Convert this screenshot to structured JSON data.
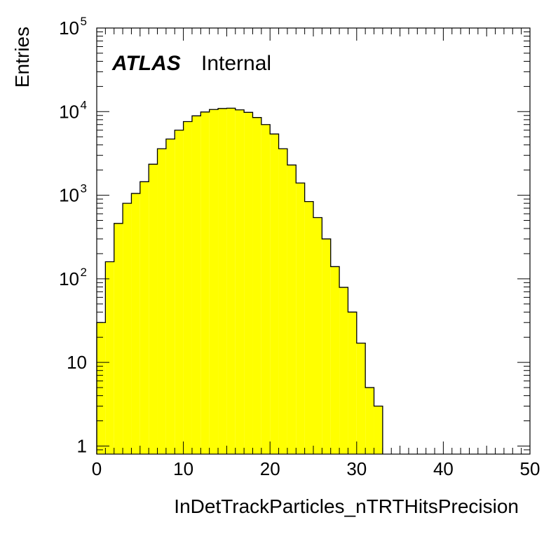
{
  "chart_data": {
    "type": "bar",
    "style": "histogram",
    "title": "",
    "xlabel": "InDetTrackParticles_nTRTHitsPrecision",
    "ylabel": "Entries",
    "xlim": [
      0,
      50
    ],
    "ylim": [
      0.8,
      100000
    ],
    "yscale": "log",
    "x_ticks": [
      0,
      10,
      20,
      30,
      40,
      50
    ],
    "y_ticks": [
      {
        "value": 1,
        "base": "1",
        "exp": ""
      },
      {
        "value": 10,
        "base": "10",
        "exp": ""
      },
      {
        "value": 100,
        "base": "10",
        "exp": "2"
      },
      {
        "value": 1000,
        "base": "10",
        "exp": "3"
      },
      {
        "value": 10000,
        "base": "10",
        "exp": "4"
      },
      {
        "value": 100000,
        "base": "10",
        "exp": "5"
      }
    ],
    "bin_width": 1,
    "bin_low_edges": [
      0,
      1,
      2,
      3,
      4,
      5,
      6,
      7,
      8,
      9,
      10,
      11,
      12,
      13,
      14,
      15,
      16,
      17,
      18,
      19,
      20,
      21,
      22,
      23,
      24,
      25,
      26,
      27,
      28,
      29,
      30,
      31,
      32
    ],
    "values": [
      30,
      160,
      460,
      800,
      1050,
      1450,
      2350,
      3600,
      4700,
      6000,
      7600,
      8900,
      9900,
      10600,
      10900,
      11000,
      10500,
      9800,
      8500,
      7000,
      5400,
      3600,
      2300,
      1400,
      840,
      540,
      300,
      140,
      79,
      40,
      17,
      5,
      3
    ],
    "fill_color": "#ffff00",
    "line_color": "#000000",
    "grid": false,
    "legend": "none",
    "labels": {
      "experiment": "ATLAS",
      "status": "Internal"
    }
  }
}
